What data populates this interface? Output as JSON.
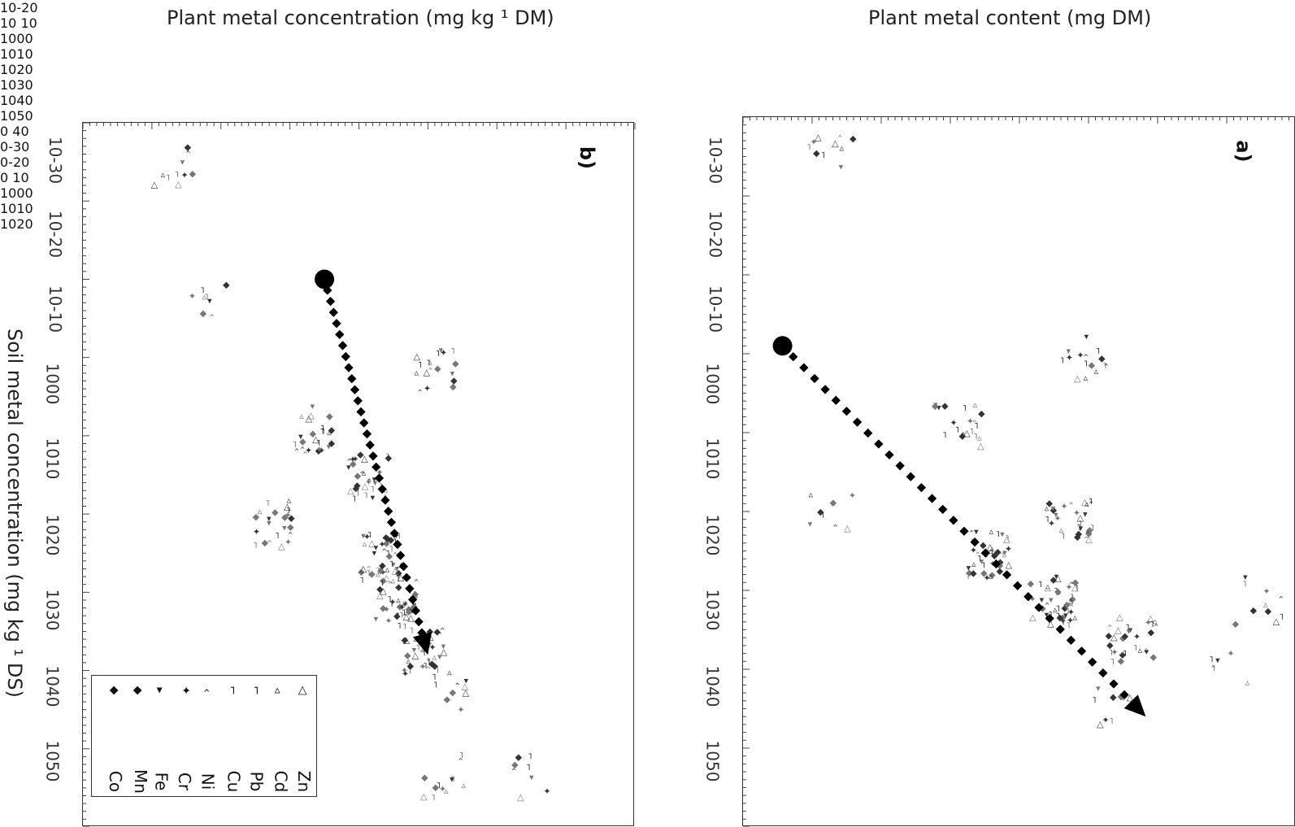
{
  "header": {
    "plant_concentration": "Plant metal concentration (mg kg ¹ DM)",
    "plant_content": "Plant metal content (mg DM)"
  },
  "soil_axis_label": "Soil metal concentration (mg kg ¹ DS)",
  "chart_data": [
    {
      "type": "scatter",
      "panel_label": "b)",
      "title": "",
      "xlabel": "Soil metal concentration (mg kg ¹ DS)",
      "ylabel": "Plant metal concentration (mg kg ¹ DM)",
      "x_log10_range": [
        -35,
        55
      ],
      "y_log10_range": [
        -23,
        57
      ],
      "soil_tick_labels": [
        "10-30",
        "10-20",
        "10-10",
        "1000",
        "1010",
        "1020",
        "1030",
        "1040",
        "1050"
      ],
      "plant_tick_labels": [
        "10-20",
        "10 10",
        "1000",
        "1010",
        "1020",
        "1030",
        "1040",
        "1050"
      ],
      "trend_arrow": {
        "from": [
          -15,
          12
        ],
        "to": [
          33,
          27
        ]
      },
      "legend_position": "bottom-left",
      "legend": [
        "Zn",
        "Cd",
        "Pb",
        "Cu",
        "Ni",
        "Cr",
        "Fe",
        "Mn",
        "Co"
      ],
      "clusters": [
        {
          "x": -30,
          "y": -10,
          "n": 10
        },
        {
          "x": -12,
          "y": -5,
          "n": 8
        },
        {
          "x": -4,
          "y": 28,
          "n": 18
        },
        {
          "x": 4,
          "y": 10,
          "n": 25
        },
        {
          "x": 10,
          "y": 18,
          "n": 30
        },
        {
          "x": 16,
          "y": 4,
          "n": 22
        },
        {
          "x": 20,
          "y": 20,
          "n": 45
        },
        {
          "x": 26,
          "y": 22,
          "n": 40
        },
        {
          "x": 32,
          "y": 26,
          "n": 35
        },
        {
          "x": 38,
          "y": 30,
          "n": 10
        },
        {
          "x": 48,
          "y": 29,
          "n": 12
        },
        {
          "x": 48,
          "y": 42,
          "n": 8
        }
      ]
    },
    {
      "type": "scatter",
      "panel_label": "a)",
      "title": "",
      "xlabel": "Soil metal concentration (mg kg ¹ DS)",
      "ylabel": "Plant metal content (mg DM)",
      "x_log10_range": [
        -35,
        55
      ],
      "y_log10_range": [
        -41,
        29
      ],
      "soil_tick_labels": [
        "10-30",
        "10-20",
        "10-10",
        "1000",
        "1010",
        "1020",
        "1030",
        "1040",
        "1050"
      ],
      "plant_tick_labels": [
        "0 40",
        "0-30",
        "0-20",
        "0 10",
        "1000",
        "1010",
        "1020"
      ],
      "trend_arrow": {
        "from": [
          -6,
          -36
        ],
        "to": [
          41,
          10
        ]
      },
      "legend": [],
      "clusters": [
        {
          "x": -30,
          "y": -30,
          "n": 10
        },
        {
          "x": -5,
          "y": 2,
          "n": 15
        },
        {
          "x": 4,
          "y": -14,
          "n": 20
        },
        {
          "x": 14,
          "y": -30,
          "n": 8
        },
        {
          "x": 16,
          "y": 0,
          "n": 30
        },
        {
          "x": 20,
          "y": -10,
          "n": 40
        },
        {
          "x": 26,
          "y": -2,
          "n": 45
        },
        {
          "x": 31,
          "y": 8,
          "n": 30
        },
        {
          "x": 26,
          "y": 24,
          "n": 10
        },
        {
          "x": 40,
          "y": 6,
          "n": 10
        },
        {
          "x": 35,
          "y": 20,
          "n": 6
        }
      ]
    }
  ]
}
